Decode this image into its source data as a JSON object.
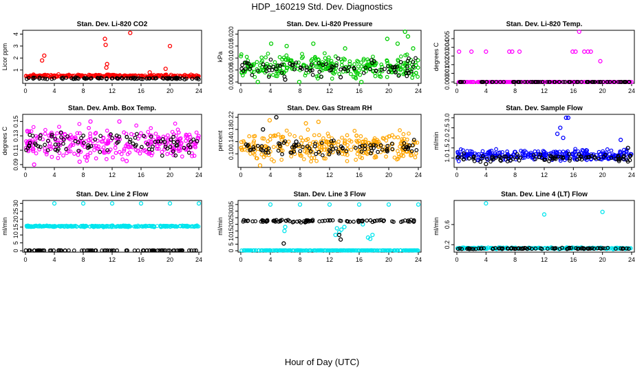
{
  "page": {
    "title": "HDP_160219  Std. Dev. Diagnostics",
    "x_caption": "Hour of Day (UTC)"
  },
  "chart_data": [
    {
      "type": "scatter",
      "title": "Stan. Dev. Li-820 CO2",
      "ylabel": "Licor ppm",
      "xlim": [
        0,
        24
      ],
      "ylim": [
        0,
        4.2
      ],
      "xticks": [
        "0",
        "4",
        "8",
        "12",
        "16",
        "20",
        "24"
      ],
      "yticks": [
        "1",
        "2",
        "3",
        "4"
      ],
      "ytick_values": [
        1,
        2,
        3,
        4
      ],
      "series": [
        {
          "color": "#ff0000",
          "base": 0.5,
          "spread": 0.1,
          "points": [
            [
              2.3,
              1.8
            ],
            [
              2.6,
              2.2
            ],
            [
              11.0,
              3.6
            ],
            [
              11.1,
              3.1
            ],
            [
              11.2,
              1.2
            ],
            [
              11.3,
              1.5
            ],
            [
              14.5,
              4.1
            ],
            [
              17.2,
              0.8
            ],
            [
              19.4,
              1.1
            ],
            [
              20.0,
              3.0
            ]
          ]
        },
        {
          "color": "#000000",
          "base": 0.3,
          "spread": 0.06,
          "points": []
        }
      ]
    },
    {
      "type": "scatter",
      "title": "Stan. Dev. Li-820 Pressure",
      "ylabel": "kPa",
      "xlim": [
        0,
        24
      ],
      "ylim": [
        0,
        0.021
      ],
      "xticks": [
        "0",
        "4",
        "8",
        "12",
        "16",
        "20",
        "24"
      ],
      "yticks": [
        "0.000",
        "0.005",
        "0.010",
        "0.015",
        "0.020"
      ],
      "ytick_values": [
        0.0,
        0.005,
        0.01,
        0.015,
        0.02
      ],
      "series": [
        {
          "color": "#00cc00",
          "base": 0.0065,
          "spread": 0.004,
          "points": [
            [
              4.1,
              0.016
            ],
            [
              6.2,
              0.015
            ],
            [
              9.8,
              0.016
            ],
            [
              14.1,
              0.014
            ],
            [
              19.8,
              0.018
            ],
            [
              21.2,
              0.016
            ],
            [
              22.2,
              0.021
            ],
            [
              22.6,
              0.019
            ],
            [
              23.3,
              0.014
            ],
            [
              2.3,
              0.0
            ],
            [
              7.9,
              0.0
            ],
            [
              16.3,
              0.0
            ]
          ]
        },
        {
          "color": "#000000",
          "base": 0.006,
          "spread": 0.003,
          "points": [
            [
              6.0,
              0.001
            ],
            [
              13.5,
              0.002
            ]
          ]
        }
      ]
    },
    {
      "type": "scatter",
      "title": "Stan. Dev. Li-820 Temp.",
      "ylabel": "degrees C",
      "xlim": [
        0,
        24
      ],
      "ylim": [
        0,
        0.0058
      ],
      "xticks": [
        "0",
        "4",
        "8",
        "12",
        "16",
        "20",
        "24"
      ],
      "yticks": [
        "0.000",
        "0.001",
        "0.002",
        "0.003",
        "0.004",
        "0.005"
      ],
      "ytick_values": [
        0.0,
        0.001,
        0.002,
        0.003,
        0.004,
        0.005
      ],
      "series": [
        {
          "color": "#ff00ff",
          "base": 0.0,
          "spread": 0.0,
          "points": [
            [
              0.3,
              0.0035
            ],
            [
              2.0,
              0.0035
            ],
            [
              4.0,
              0.0035
            ],
            [
              7.2,
              0.0035
            ],
            [
              7.6,
              0.0035
            ],
            [
              8.6,
              0.0035
            ],
            [
              15.9,
              0.0035
            ],
            [
              16.3,
              0.0035
            ],
            [
              16.8,
              0.0058
            ],
            [
              17.5,
              0.0035
            ],
            [
              18.0,
              0.0035
            ],
            [
              18.4,
              0.0035
            ],
            [
              19.7,
              0.0024
            ]
          ]
        },
        {
          "color": "#000000",
          "base": 0.0,
          "spread": 0.0,
          "points": []
        }
      ]
    },
    {
      "type": "scatter",
      "title": "Stan. Dev. Amb. Box Temp.",
      "ylabel": "degrees C",
      "xlim": [
        0,
        24
      ],
      "ylim": [
        0.088,
        0.158
      ],
      "xticks": [
        "0",
        "4",
        "8",
        "12",
        "16",
        "20",
        "24"
      ],
      "yticks": [
        "0.09",
        "0.11",
        "0.13",
        "0.15"
      ],
      "ytick_values": [
        0.09,
        0.11,
        0.13,
        0.15
      ],
      "series": [
        {
          "color": "#ff00ff",
          "base": 0.12,
          "spread": 0.018,
          "points": [
            [
              1.2,
              0.09
            ],
            [
              9.0,
              0.15
            ],
            [
              13.0,
              0.15
            ],
            [
              14.0,
              0.095
            ],
            [
              7.5,
              0.094
            ]
          ]
        },
        {
          "color": "#000000",
          "base": 0.12,
          "spread": 0.013,
          "points": []
        }
      ]
    },
    {
      "type": "scatter",
      "title": "Stan. Dev. Gas Stream RH",
      "ylabel": "percent",
      "xlim": [
        0,
        24
      ],
      "ylim": [
        0.06,
        0.225
      ],
      "xticks": [
        "0",
        "4",
        "8",
        "12",
        "16",
        "20",
        "24"
      ],
      "yticks": [
        "0.10",
        "0.14",
        "0.18",
        "0.22"
      ],
      "ytick_values": [
        0.1,
        0.14,
        0.18,
        0.22
      ],
      "series": [
        {
          "color": "#ffa500",
          "base": 0.125,
          "spread": 0.04,
          "points": [
            [
              3.9,
              0.21
            ],
            [
              10.5,
              0.205
            ],
            [
              2.6,
              0.062
            ],
            [
              8.8,
              0.2
            ]
          ]
        },
        {
          "color": "#000000",
          "base": 0.12,
          "spread": 0.02,
          "points": [
            [
              4.8,
              0.22
            ],
            [
              3.0,
              0.18
            ],
            [
              7.5,
              0.14
            ]
          ]
        }
      ]
    },
    {
      "type": "scatter",
      "title": "Stan. Dev. Sample Flow",
      "ylabel": "ml/min",
      "xlim": [
        0,
        24
      ],
      "ylim": [
        0.6,
        3.1
      ],
      "xticks": [
        "0",
        "4",
        "8",
        "12",
        "16",
        "20",
        "24"
      ],
      "yticks": [
        "1.0",
        "1.5",
        "2.0",
        "2.5",
        "3.0"
      ],
      "ytick_values": [
        1.0,
        1.5,
        2.0,
        2.5,
        3.0
      ],
      "series": [
        {
          "color": "#0000ff",
          "base": 1.15,
          "spread": 0.25,
          "points": [
            [
              15.0,
              3.0
            ],
            [
              15.3,
              3.0
            ],
            [
              14.2,
              2.5
            ],
            [
              13.8,
              2.2
            ],
            [
              14.6,
              2.0
            ],
            [
              22.5,
              1.9
            ]
          ]
        },
        {
          "color": "#000000",
          "base": 1.0,
          "spread": 0.15,
          "points": [
            [
              4.0,
              0.7
            ],
            [
              23.5,
              1.5
            ]
          ]
        }
      ]
    },
    {
      "type": "scatter",
      "title": "Stan. Dev. Line 2 Flow",
      "ylabel": "ml/min",
      "xlim": [
        0,
        24
      ],
      "ylim": [
        0,
        31
      ],
      "xticks": [
        "0",
        "4",
        "8",
        "12",
        "16",
        "20",
        "24"
      ],
      "yticks": [
        "0",
        "5",
        "10",
        "15",
        "20",
        "25",
        "30"
      ],
      "ytick_values": [
        0,
        5,
        10,
        15,
        20,
        25,
        30
      ],
      "series": [
        {
          "color": "#00e5ee",
          "base": 15.5,
          "spread": 0.4,
          "points": [
            [
              4.0,
              30
            ],
            [
              8.0,
              30
            ],
            [
              12.0,
              30
            ],
            [
              16.0,
              30
            ],
            [
              20.0,
              30
            ],
            [
              24.0,
              30
            ]
          ]
        },
        {
          "color": "#000000",
          "base": 0.2,
          "spread": 0.05,
          "points": []
        }
      ]
    },
    {
      "type": "scatter",
      "title": "Stan. Dev. Line 3 Flow",
      "ylabel": "ml/min",
      "xlim": [
        0,
        24
      ],
      "ylim": [
        0,
        37
      ],
      "xticks": [
        "0",
        "4",
        "8",
        "12",
        "16",
        "20",
        "24"
      ],
      "yticks": [
        "0",
        "5",
        "10",
        "15",
        "20",
        "25",
        "30",
        "35"
      ],
      "ytick_values": [
        0,
        5,
        10,
        15,
        20,
        25,
        30,
        35
      ],
      "series": [
        {
          "color": "#00e5ee",
          "base": 0.3,
          "spread": 0.1,
          "points": [
            [
              4.0,
              35
            ],
            [
              8.0,
              35
            ],
            [
              12.0,
              35
            ],
            [
              16.0,
              35
            ],
            [
              20.0,
              35
            ],
            [
              24.0,
              35
            ],
            [
              6.0,
              18
            ],
            [
              5.9,
              15
            ],
            [
              13.0,
              17
            ],
            [
              13.3,
              14
            ],
            [
              13.6,
              16
            ],
            [
              12.8,
              12
            ],
            [
              17.2,
              10
            ],
            [
              17.5,
              9
            ],
            [
              17.8,
              12
            ],
            [
              14.0,
              18
            ],
            [
              16.5,
              20
            ]
          ]
        },
        {
          "color": "#000000",
          "base": 22.5,
          "spread": 0.8,
          "points": [
            [
              5.8,
              5.5
            ],
            [
              13.5,
              8.5
            ],
            [
              13.3,
              12
            ]
          ]
        }
      ]
    },
    {
      "type": "scatter",
      "title": "Stan. Dev. Line 4 (LT) Flow",
      "ylabel": "ml/min",
      "xlim": [
        0,
        24
      ],
      "ylim": [
        0.08,
        1.05
      ],
      "xticks": [
        "0",
        "4",
        "8",
        "12",
        "16",
        "20",
        "24"
      ],
      "yticks": [
        "0.2",
        "0.6"
      ],
      "ytick_values": [
        0.2,
        0.6
      ],
      "series": [
        {
          "color": "#00e5ee",
          "base": 0.13,
          "spread": 0.015,
          "points": [
            [
              4.0,
              1.02
            ],
            [
              12.0,
              0.8
            ],
            [
              20.0,
              0.85
            ]
          ]
        },
        {
          "color": "#000000",
          "base": 0.125,
          "spread": 0.012,
          "points": []
        }
      ]
    }
  ]
}
